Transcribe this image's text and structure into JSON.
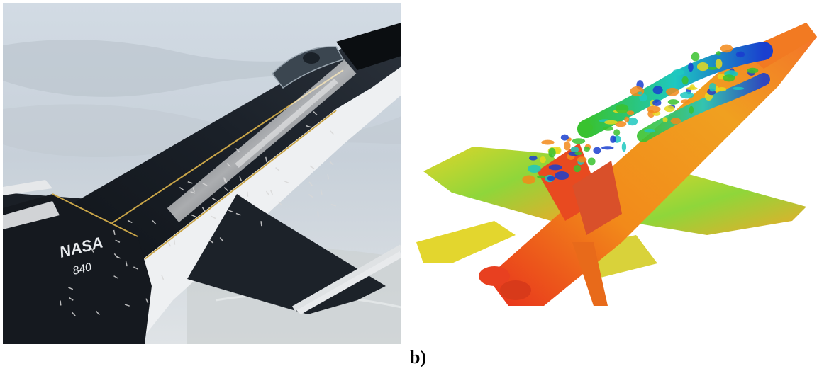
{
  "figure": {
    "label_b": "b)"
  },
  "photo": {
    "tail_marking": "NASA",
    "tail_number": "840"
  },
  "colors": {
    "sky_top": "#cfd9e3",
    "sky_bottom": "#e4e9ee",
    "aircraft_black": "#111418",
    "aircraft_white": "#eef0f2",
    "cfd_red": "#e8301c",
    "cfd_orange": "#f28a1a",
    "cfd_yellow": "#e8d81c",
    "cfd_green": "#39c22f",
    "cfd_cyan": "#1ec8c0",
    "cfd_blue": "#1a3fcf"
  }
}
